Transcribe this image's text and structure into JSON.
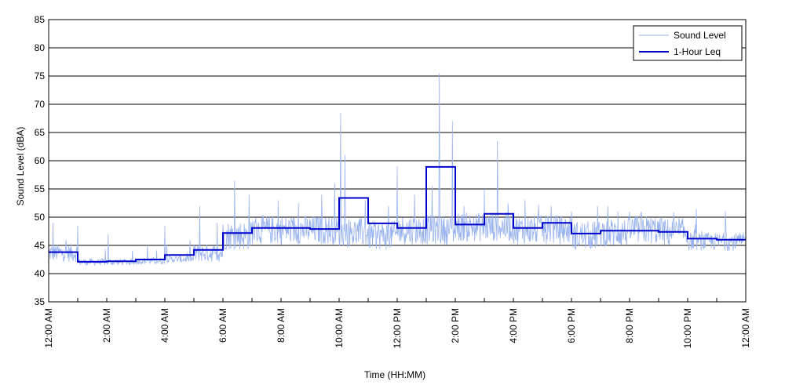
{
  "chart_data": {
    "type": "line",
    "title": "",
    "xlabel": "Time (HH:MM)",
    "ylabel": "Sound Level (dBA)",
    "xlim": [
      0,
      24
    ],
    "ylim": [
      35,
      85
    ],
    "yticks": [
      35,
      40,
      45,
      50,
      55,
      60,
      65,
      70,
      75,
      80,
      85
    ],
    "xtick_labels": [
      "12:00 AM",
      "2:00 AM",
      "4:00 AM",
      "6:00 AM",
      "8:00 AM",
      "10:00 AM",
      "12:00 PM",
      "2:00 PM",
      "4:00 PM",
      "6:00 PM",
      "8:00 PM",
      "10:00 PM",
      "12:00 AM"
    ],
    "grid": "horizontal",
    "legend_position": "top-right",
    "colors": {
      "sound_level": "#99b3ee",
      "leq": "#0000cc"
    },
    "series": [
      {
        "name": "Sound Level",
        "style": "thin-light-blue",
        "hourly_base": [
          43.5,
          42.0,
          42.0,
          42.2,
          42.5,
          43.5,
          46.5,
          47.5,
          47.5,
          47.5,
          47.0,
          46.5,
          47.5,
          47.5,
          48.0,
          48.0,
          47.5,
          47.5,
          46.5,
          47.0,
          47.5,
          47.0,
          45.5,
          45.5
        ],
        "spikes": [
          {
            "x": 0.15,
            "y": 49.0
          },
          {
            "x": 1.0,
            "y": 48.5
          },
          {
            "x": 2.05,
            "y": 47.0
          },
          {
            "x": 3.4,
            "y": 45.0
          },
          {
            "x": 4.0,
            "y": 48.5
          },
          {
            "x": 5.2,
            "y": 52.0
          },
          {
            "x": 5.8,
            "y": 49.0
          },
          {
            "x": 6.4,
            "y": 56.5
          },
          {
            "x": 6.9,
            "y": 54.0
          },
          {
            "x": 7.9,
            "y": 53.0
          },
          {
            "x": 8.6,
            "y": 52.5
          },
          {
            "x": 9.4,
            "y": 54.0
          },
          {
            "x": 9.85,
            "y": 56.0
          },
          {
            "x": 10.05,
            "y": 68.5
          },
          {
            "x": 10.2,
            "y": 61.0
          },
          {
            "x": 10.9,
            "y": 53.0
          },
          {
            "x": 11.7,
            "y": 52.0
          },
          {
            "x": 12.0,
            "y": 59.0
          },
          {
            "x": 12.6,
            "y": 54.0
          },
          {
            "x": 13.2,
            "y": 55.5
          },
          {
            "x": 13.45,
            "y": 75.5
          },
          {
            "x": 13.9,
            "y": 67.0
          },
          {
            "x": 14.3,
            "y": 52.0
          },
          {
            "x": 15.0,
            "y": 55.0
          },
          {
            "x": 15.45,
            "y": 63.5
          },
          {
            "x": 16.4,
            "y": 53.0
          },
          {
            "x": 17.3,
            "y": 52.0
          },
          {
            "x": 18.0,
            "y": 51.0
          },
          {
            "x": 18.9,
            "y": 52.0
          },
          {
            "x": 19.6,
            "y": 51.0
          },
          {
            "x": 20.4,
            "y": 51.0
          },
          {
            "x": 21.1,
            "y": 50.0
          },
          {
            "x": 22.3,
            "y": 51.5
          },
          {
            "x": 23.3,
            "y": 51.0
          }
        ]
      },
      {
        "name": "1-Hour Leq",
        "style": "thick-dark-blue-step",
        "hour_start": [
          0,
          1,
          2,
          3,
          4,
          5,
          6,
          7,
          8,
          9,
          10,
          11,
          12,
          13,
          14,
          15,
          16,
          17,
          18,
          19,
          20,
          21,
          22,
          23
        ],
        "values": [
          43.8,
          42.1,
          42.2,
          42.5,
          43.3,
          44.2,
          47.2,
          48.1,
          48.1,
          47.9,
          53.4,
          48.9,
          48.1,
          58.9,
          48.7,
          50.6,
          48.1,
          49.0,
          47.1,
          47.6,
          47.6,
          47.4,
          46.2,
          46.0
        ]
      }
    ]
  }
}
